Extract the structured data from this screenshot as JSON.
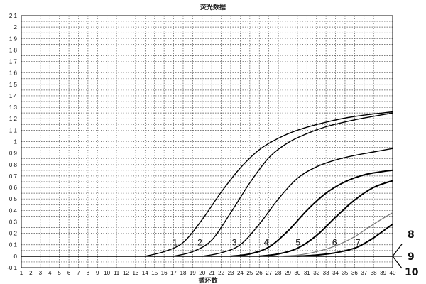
{
  "chart_data": {
    "type": "line",
    "title": "荧光数据",
    "xlabel": "循环数",
    "ylabel": "",
    "xlim": [
      1,
      40
    ],
    "ylim": [
      -0.1,
      2.1
    ],
    "x_ticks": [
      "1",
      "2",
      "3",
      "4",
      "5",
      "6",
      "7",
      "8",
      "9",
      "10",
      "11",
      "12",
      "13",
      "14",
      "15",
      "16",
      "17",
      "18",
      "19",
      "20",
      "21",
      "22",
      "23",
      "24",
      "25",
      "26",
      "27",
      "28",
      "29",
      "30",
      "31",
      "32",
      "33",
      "34",
      "35",
      "36",
      "37",
      "38",
      "39",
      "40"
    ],
    "y_ticks": [
      {
        "value": -0.1,
        "label": "-0.1"
      },
      {
        "value": 0,
        "label": "0"
      },
      {
        "value": 0.1,
        "label": "0.1"
      },
      {
        "value": 0.2,
        "label": "0.2"
      },
      {
        "value": 0.3,
        "label": "0.3"
      },
      {
        "value": 0.4,
        "label": "0.4"
      },
      {
        "value": 0.5,
        "label": "0.5"
      },
      {
        "value": 0.6,
        "label": "0.6"
      },
      {
        "value": 0.7,
        "label": "0.7"
      },
      {
        "value": 0.8,
        "label": "0.8"
      },
      {
        "value": 0.9,
        "label": "0.9"
      },
      {
        "value": 1.0,
        "label": "1"
      },
      {
        "value": 1.1,
        "label": "1.1"
      },
      {
        "value": 1.2,
        "label": "1.2"
      },
      {
        "value": 1.3,
        "label": "1.3"
      },
      {
        "value": 1.4,
        "label": "1.4"
      },
      {
        "value": 1.5,
        "label": "1.5"
      },
      {
        "value": 1.6,
        "label": "1.6"
      },
      {
        "value": 1.7,
        "label": "1.7"
      },
      {
        "value": 1.8,
        "label": "1.8"
      },
      {
        "value": 1.9,
        "label": "1.9"
      },
      {
        "value": 2.0,
        "label": "2"
      },
      {
        "value": 2.1,
        "label": "2.1"
      }
    ],
    "grid": true,
    "series": [
      {
        "label": "1",
        "style": "normal",
        "points": [
          [
            14,
            0
          ],
          [
            16,
            0.04
          ],
          [
            18,
            0.12
          ],
          [
            20,
            0.32
          ],
          [
            22,
            0.56
          ],
          [
            24,
            0.77
          ],
          [
            26,
            0.93
          ],
          [
            28,
            1.03
          ],
          [
            30,
            1.1
          ],
          [
            33,
            1.17
          ],
          [
            36,
            1.22
          ],
          [
            40,
            1.26
          ]
        ]
      },
      {
        "label": "2",
        "style": "normal",
        "points": [
          [
            17,
            0
          ],
          [
            19,
            0.04
          ],
          [
            21,
            0.14
          ],
          [
            23,
            0.38
          ],
          [
            25,
            0.64
          ],
          [
            27,
            0.86
          ],
          [
            29,
            0.99
          ],
          [
            31,
            1.07
          ],
          [
            33,
            1.13
          ],
          [
            36,
            1.19
          ],
          [
            40,
            1.25
          ]
        ]
      },
      {
        "label": "3",
        "style": "normal",
        "points": [
          [
            20,
            0
          ],
          [
            22,
            0.03
          ],
          [
            24,
            0.1
          ],
          [
            26,
            0.28
          ],
          [
            28,
            0.5
          ],
          [
            30,
            0.68
          ],
          [
            32,
            0.78
          ],
          [
            34,
            0.84
          ],
          [
            36,
            0.88
          ],
          [
            38,
            0.91
          ],
          [
            40,
            0.94
          ]
        ]
      },
      {
        "label": "4",
        "style": "thick",
        "points": [
          [
            23,
            0
          ],
          [
            25,
            0.02
          ],
          [
            27,
            0.08
          ],
          [
            29,
            0.22
          ],
          [
            31,
            0.4
          ],
          [
            33,
            0.55
          ],
          [
            35,
            0.65
          ],
          [
            37,
            0.71
          ],
          [
            39,
            0.74
          ],
          [
            40,
            0.75
          ]
        ]
      },
      {
        "label": "5",
        "style": "thick",
        "points": [
          [
            26,
            0
          ],
          [
            28,
            0.02
          ],
          [
            30,
            0.07
          ],
          [
            32,
            0.18
          ],
          [
            34,
            0.34
          ],
          [
            36,
            0.49
          ],
          [
            38,
            0.6
          ],
          [
            40,
            0.66
          ]
        ]
      },
      {
        "label": "6",
        "style": "light",
        "points": [
          [
            28,
            0
          ],
          [
            30,
            0.01
          ],
          [
            32,
            0.04
          ],
          [
            34,
            0.09
          ],
          [
            36,
            0.17
          ],
          [
            38,
            0.28
          ],
          [
            40,
            0.38
          ]
        ]
      },
      {
        "label": "7",
        "style": "thick",
        "points": [
          [
            30,
            0
          ],
          [
            32,
            0.01
          ],
          [
            34,
            0.03
          ],
          [
            36,
            0.07
          ],
          [
            37,
            0.11
          ],
          [
            38,
            0.16
          ],
          [
            39,
            0.22
          ],
          [
            40,
            0.28
          ]
        ]
      }
    ],
    "flat_labels": [
      "8",
      "9",
      "10"
    ]
  }
}
